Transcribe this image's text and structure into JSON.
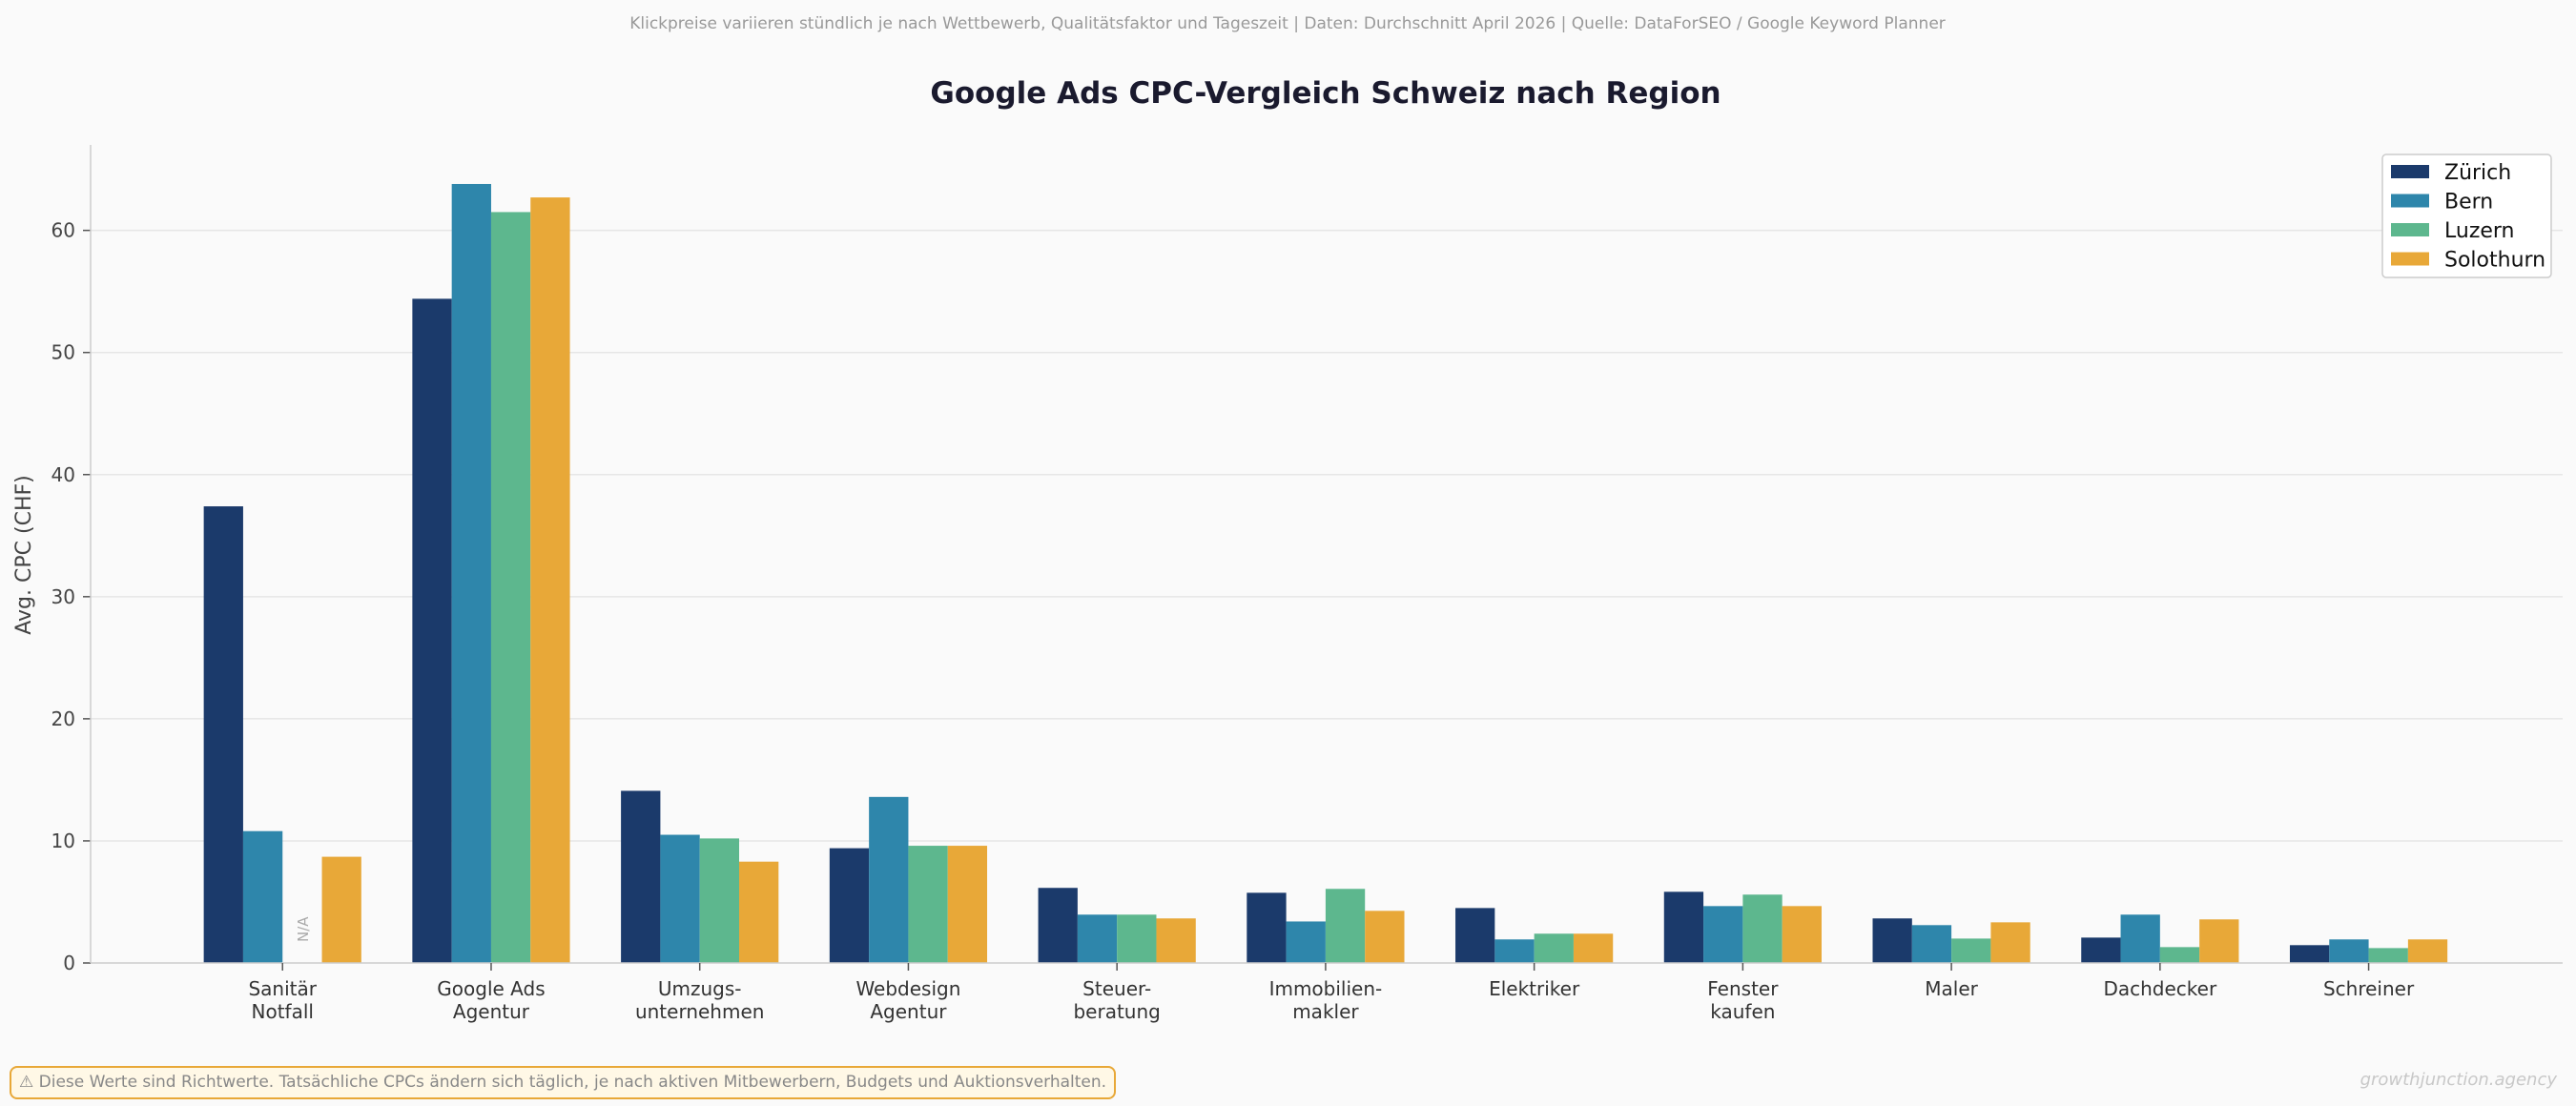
{
  "subtitle": "Klickpreise variieren stündlich je nach Wettbewerb, Qualitätsfaktor und Tageszeit  |  Daten: Durchschnitt April 2026  |  Quelle: DataForSEO / Google Keyword Planner",
  "footer_note": "⚠  Diese Werte sind Richtwerte. Tatsächliche CPCs ändern sich täglich, je nach aktiven Mitbewerbern, Budgets und Auktionsverhalten.",
  "watermark": "growthjunction.agency",
  "chart_data": {
    "type": "bar",
    "title": "Google Ads CPC-Vergleich Schweiz nach Region",
    "xlabel": "",
    "ylabel": "Avg. CPC (CHF)",
    "ylim": [
      0,
      67
    ],
    "yticks": [
      0,
      10,
      20,
      30,
      40,
      50,
      60
    ],
    "grid": "horizontal",
    "legend": "top-right",
    "missing_label": "N/A",
    "categories": [
      "Sanitär\nNotfall",
      "Google Ads\nAgentur",
      "Umzugs-\nunternehmen",
      "Webdesign\nAgentur",
      "Steuer-\nberatung",
      "Immobilien-\nmakler",
      "Elektriker",
      "Fenster\nkaufen",
      "Maler",
      "Dachdecker",
      "Schreiner"
    ],
    "series": [
      {
        "name": "Zürich",
        "color": "#1b3a6b",
        "values": [
          37.4,
          54.4,
          14.1,
          9.4,
          6.15,
          5.75,
          4.5,
          5.83,
          3.65,
          2.08,
          1.46
        ]
      },
      {
        "name": "Bern",
        "color": "#2e86ab",
        "values": [
          10.8,
          63.8,
          10.5,
          13.6,
          3.96,
          3.4,
          1.93,
          4.66,
          3.1,
          3.96,
          1.93
        ]
      },
      {
        "name": "Luzern",
        "color": "#5db78e",
        "values": [
          null,
          61.5,
          10.2,
          9.6,
          3.96,
          6.07,
          2.4,
          5.6,
          2.0,
          1.3,
          1.22
        ]
      },
      {
        "name": "Solothurn",
        "color": "#e8a838",
        "values": [
          8.7,
          62.7,
          8.3,
          9.6,
          3.65,
          4.27,
          2.4,
          4.66,
          3.33,
          3.57,
          1.93
        ]
      }
    ]
  }
}
